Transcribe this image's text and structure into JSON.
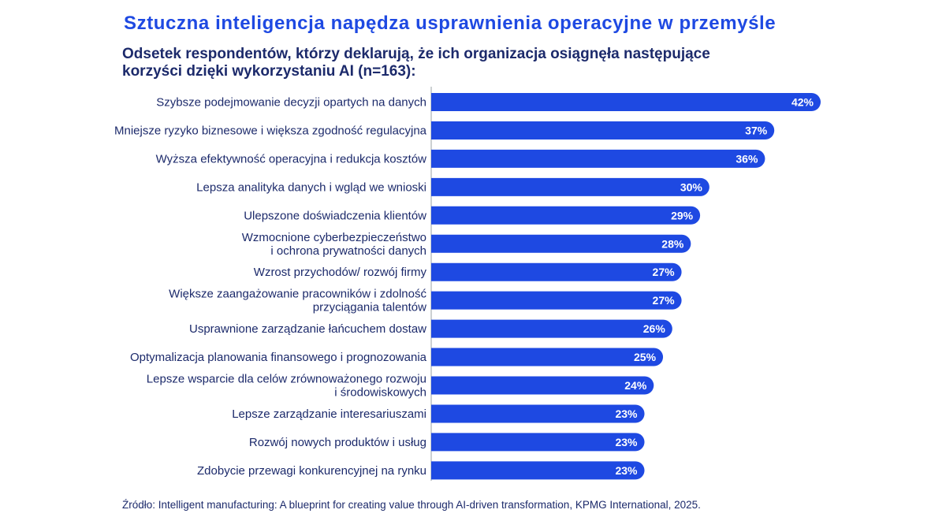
{
  "title": "Sztuczna inteligencja napędza usprawnienia operacyjne w przemyśle",
  "subtitle": "Odsetek respondentów, którzy deklarują, że ich organizacja osiągnęła następujące korzyści dzięki wykorzystaniu AI (n=163):",
  "source": "Źródło: Intelligent manufacturing: A blueprint for creating value through AI-driven transformation, KPMG International, 2025.",
  "colors": {
    "title": "#1e49e2",
    "bar": "#1e49e2",
    "text": "#1c2a6b"
  },
  "chart_data": {
    "type": "bar",
    "orientation": "horizontal",
    "unit": "%",
    "categories": [
      [
        "Szybsze podejmowanie decyzji opartych na danych"
      ],
      [
        "Mniejsze ryzyko biznesowe i większa zgodność regulacyjna"
      ],
      [
        "Wyższa efektywność operacyjna i redukcja kosztów"
      ],
      [
        "Lepsza analityka danych i wgląd we wnioski"
      ],
      [
        "Ulepszone doświadczenia klientów"
      ],
      [
        "Wzmocnione cyberbezpieczeństwo",
        "i ochrona prywatności danych"
      ],
      [
        "Wzrost przychodów/ rozwój firmy"
      ],
      [
        "Większe zaangażowanie pracowników i zdolność",
        "przyciągania talentów"
      ],
      [
        "Usprawnione zarządzanie łańcuchem dostaw"
      ],
      [
        "Optymalizacja planowania finansowego i prognozowania"
      ],
      [
        "Lepsze wsparcie dla celów zrównoważonego rozwoju",
        "i środowiskowych"
      ],
      [
        "Lepsze zarządzanie interesariuszami"
      ],
      [
        "Rozwój nowych produktów i usług"
      ],
      [
        "Zdobycie przewagi konkurencyjnej na rynku"
      ]
    ],
    "values": [
      42,
      37,
      36,
      30,
      29,
      28,
      27,
      27,
      26,
      25,
      24,
      23,
      23,
      23
    ],
    "value_labels": [
      "42%",
      "37%",
      "36%",
      "30%",
      "29%",
      "28%",
      "27%",
      "27%",
      "26%",
      "25%",
      "24%",
      "23%",
      "23%",
      "23%"
    ],
    "xlim": [
      0,
      42
    ],
    "grid": false,
    "legend": "none"
  }
}
